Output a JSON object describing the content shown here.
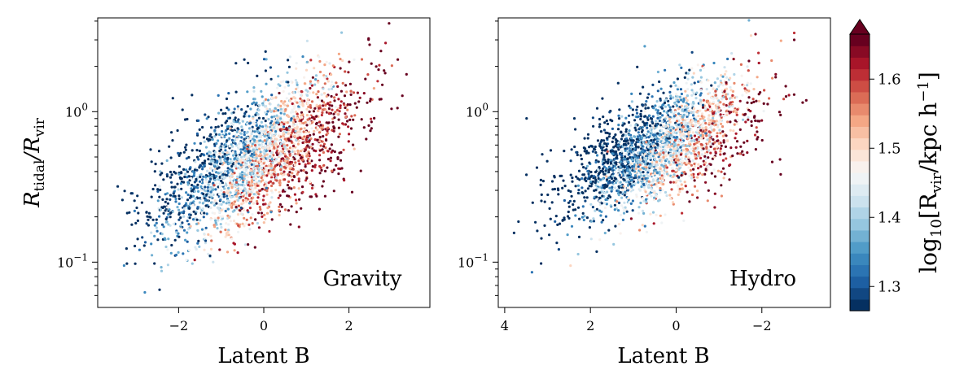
{
  "chart_data": [
    {
      "type": "scatter",
      "panel": "Gravity",
      "annotation": "Gravity",
      "xlabel": "Latent B",
      "ylabel": "R_tidal / R_vir",
      "ylabel_main": "R",
      "ylabel_sub1": "tidal",
      "ylabel_sep": "/R",
      "ylabel_sub2": "vir",
      "xscale": "linear",
      "yscale": "log",
      "xlim": [
        -3.9,
        3.9
      ],
      "ylim": [
        0.05,
        4.2
      ],
      "xticks": [
        {
          "value": -2,
          "label": "−2"
        },
        {
          "value": 0,
          "label": "0"
        },
        {
          "value": 2,
          "label": "2"
        }
      ],
      "yticks": [
        {
          "value": 0.1,
          "label_base": "10",
          "label_exp": "−1"
        },
        {
          "value": 1.0,
          "label_base": "10",
          "label_exp": "0"
        }
      ],
      "cloud": {
        "n_points": 2600,
        "x_range": [
          -3.5,
          3.6
        ],
        "x_center": -0.2,
        "x_spread": 1.15,
        "logy_slope": 0.15,
        "logy_intercept": -0.28,
        "logy_spread": 0.2,
        "color_slope": 0.09,
        "color_intercept": 1.47,
        "color_spread": 0.08,
        "seed": 11
      }
    },
    {
      "type": "scatter",
      "panel": "Hydro",
      "annotation": "Hydro",
      "xlabel": "Latent B",
      "xscale": "linear (inverted)",
      "yscale": "log",
      "xlim": [
        4.15,
        -3.6
      ],
      "ylim": [
        0.05,
        4.2
      ],
      "xticks": [
        {
          "value": 4,
          "label": "4"
        },
        {
          "value": 2,
          "label": "2"
        },
        {
          "value": 0,
          "label": "0"
        },
        {
          "value": -2,
          "label": "−2"
        }
      ],
      "yticks": [
        {
          "value": 0.1,
          "label_base": "10",
          "label_exp": "−1"
        },
        {
          "value": 1.0,
          "label_base": "10",
          "label_exp": "0"
        }
      ],
      "cloud": {
        "n_points": 2400,
        "x_range": [
          -3.3,
          3.9
        ],
        "x_center": 0.4,
        "x_spread": 1.05,
        "logy_slope": -0.13,
        "logy_intercept": -0.2,
        "logy_spread": 0.18,
        "color_slope": -0.1,
        "color_intercept": 1.44,
        "color_spread": 0.08,
        "seed": 29
      }
    }
  ],
  "colorbar": {
    "range": [
      1.265,
      1.665
    ],
    "extend": "max",
    "ticks": [
      {
        "value": 1.3,
        "label": "1.3"
      },
      {
        "value": 1.4,
        "label": "1.4"
      },
      {
        "value": 1.5,
        "label": "1.5"
      },
      {
        "value": 1.6,
        "label": "1.6"
      }
    ],
    "label_text": "log10[Rvir/kpc h−1]",
    "label_log": "log",
    "label_log_sub": "10",
    "label_open": "[R",
    "label_vir_sub": "vir",
    "label_mid": "/kpc h",
    "label_exp": "−1",
    "label_close": "]",
    "colors": [
      "#053061",
      "#2166ac",
      "#4393c3",
      "#92c5de",
      "#d1e5f0",
      "#f7f7f7",
      "#fddbc7",
      "#f4a582",
      "#d6604d",
      "#b2182b",
      "#67001f"
    ]
  }
}
